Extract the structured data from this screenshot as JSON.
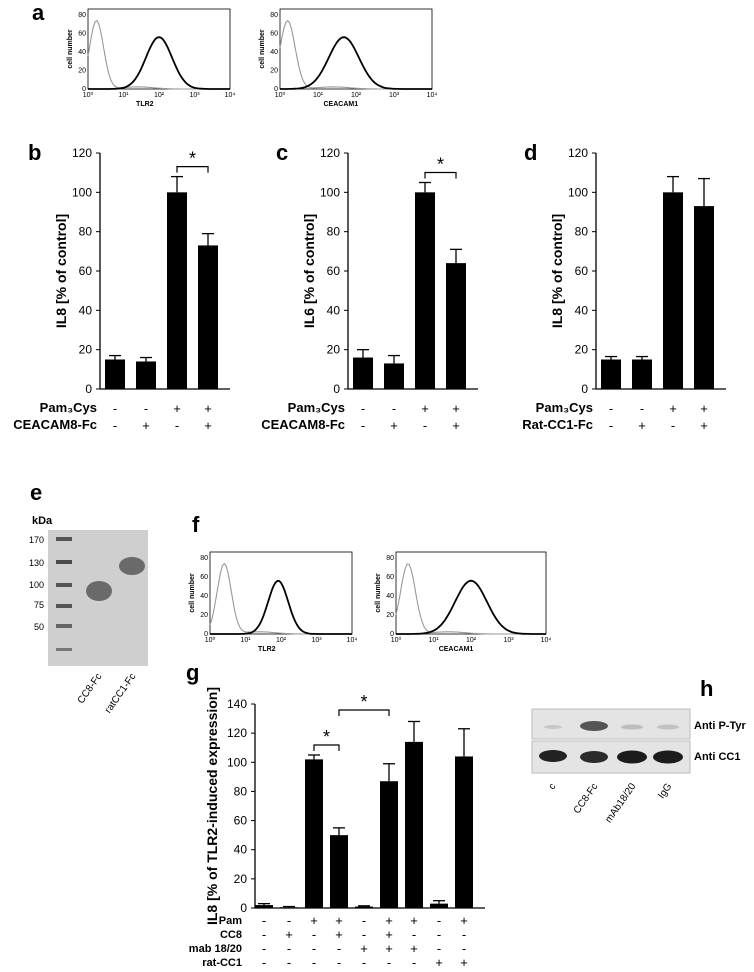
{
  "letters": {
    "a": "a",
    "b": "b",
    "c": "c",
    "d": "d",
    "e": "e",
    "f": "f",
    "g": "g",
    "h": "h"
  },
  "flow_common": {
    "ylabel": "cell number",
    "yticks": [
      "0",
      "20",
      "40",
      "60",
      "80"
    ],
    "xticks": [
      "10⁰",
      "10¹",
      "10²",
      "10³",
      "10⁴"
    ]
  },
  "flow_xlabels": {
    "a1": "TLR2",
    "a2": "CEACAM1",
    "f1": "TLR2",
    "f2": "CEACAM1"
  },
  "significance": "*",
  "chart_data": [
    {
      "id": "b",
      "type": "bar",
      "ylabel": "IL8 [% of control]",
      "ylim": [
        0,
        120
      ],
      "yticks": [
        "0",
        "20",
        "40",
        "60",
        "80",
        "100",
        "120"
      ],
      "values": [
        15,
        14,
        100,
        73
      ],
      "errors": [
        2,
        2,
        8,
        6
      ],
      "rows": [
        {
          "label": "Pam₃Cys",
          "signs": [
            "-",
            "-",
            "+",
            "+"
          ]
        },
        {
          "label": "CEACAM8-Fc",
          "signs": [
            "-",
            "+",
            "-",
            "+"
          ]
        }
      ],
      "brackets": [
        [
          2,
          3
        ]
      ]
    },
    {
      "id": "c",
      "type": "bar",
      "ylabel": "IL6 [% of control]",
      "ylim": [
        0,
        120
      ],
      "yticks": [
        "0",
        "20",
        "40",
        "60",
        "80",
        "100",
        "120"
      ],
      "values": [
        16,
        13,
        100,
        64
      ],
      "errors": [
        4,
        4,
        5,
        7
      ],
      "rows": [
        {
          "label": "Pam₃Cys",
          "signs": [
            "-",
            "-",
            "+",
            "+"
          ]
        },
        {
          "label": "CEACAM8-Fc",
          "signs": [
            "-",
            "+",
            "-",
            "+"
          ]
        }
      ],
      "brackets": [
        [
          2,
          3
        ]
      ]
    },
    {
      "id": "d",
      "type": "bar",
      "ylabel": "IL8 [% of control]",
      "ylim": [
        0,
        120
      ],
      "yticks": [
        "0",
        "20",
        "40",
        "60",
        "80",
        "100",
        "120"
      ],
      "values": [
        15,
        15,
        100,
        93
      ],
      "errors": [
        1.5,
        1.5,
        8,
        14
      ],
      "rows": [
        {
          "label": "Pam₃Cys",
          "signs": [
            "-",
            "-",
            "+",
            "+"
          ]
        },
        {
          "label": "Rat-CC1-Fc",
          "signs": [
            "-",
            "+",
            "-",
            "+"
          ]
        }
      ],
      "brackets": []
    },
    {
      "id": "g",
      "type": "bar",
      "ylabel": "IL8 [% of TLR2-induced expression]",
      "ylim": [
        0,
        140
      ],
      "yticks": [
        "0",
        "20",
        "40",
        "60",
        "80",
        "100",
        "120",
        "140"
      ],
      "values": [
        2,
        0.5,
        102,
        50,
        1,
        87,
        114,
        3,
        104
      ],
      "errors": [
        1,
        0.5,
        3,
        5,
        0.5,
        12,
        14,
        2,
        19
      ],
      "rows": [
        {
          "label": "Pam",
          "signs": [
            "-",
            "-",
            "+",
            "+",
            "-",
            "+",
            "+",
            "-",
            "+"
          ]
        },
        {
          "label": "CC8",
          "signs": [
            "-",
            "+",
            "-",
            "+",
            "-",
            "+",
            "-",
            "-",
            "-"
          ]
        },
        {
          "label": "mab 18/20",
          "signs": [
            "-",
            "-",
            "-",
            "-",
            "+",
            "+",
            "+",
            "-",
            "-"
          ]
        },
        {
          "label": "rat-CC1",
          "signs": [
            "-",
            "-",
            "-",
            "-",
            "-",
            "-",
            "-",
            "+",
            "+"
          ]
        }
      ],
      "brackets": [
        [
          2,
          3
        ],
        [
          3,
          5
        ]
      ]
    }
  ],
  "gel": {
    "unit": "kDa",
    "markers": [
      "170",
      "130",
      "100",
      "75",
      "50"
    ],
    "lanes": [
      "CC8-Fc",
      "ratCC1-Fc"
    ]
  },
  "western": {
    "labels": [
      "Anti P-Tyr",
      "Anti CC1"
    ],
    "lanes": [
      "c",
      "CC8-Fc",
      "mAb18/20",
      "IgG"
    ]
  }
}
